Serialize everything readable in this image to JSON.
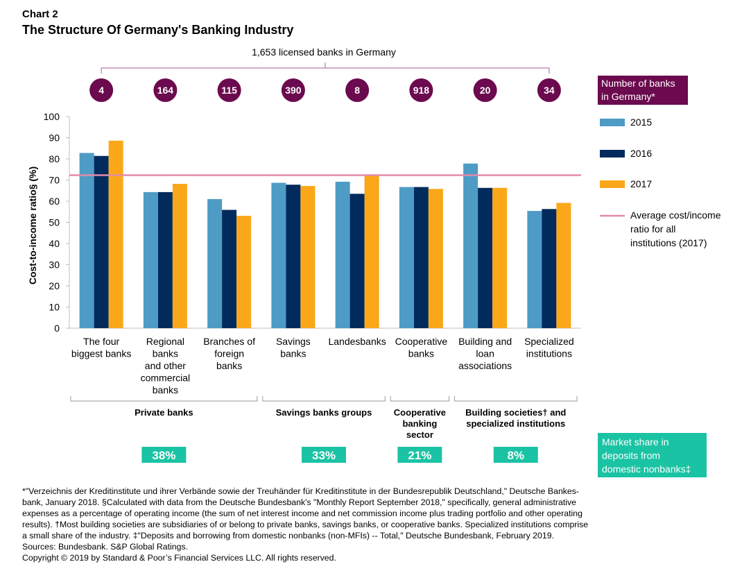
{
  "chart_label": "Chart 2",
  "chart_data": {
    "type": "bar",
    "title": "The Structure Of Germany's Banking Industry",
    "ylabel": "Cost-to-income ratio§ (%)",
    "xlabel": "",
    "ylim": [
      0,
      100
    ],
    "yticks": [
      0,
      10,
      20,
      30,
      40,
      50,
      60,
      70,
      80,
      90,
      100
    ],
    "categories": [
      [
        "The four",
        "biggest banks"
      ],
      [
        "Regional",
        "banks",
        "and other",
        "commercial",
        "banks"
      ],
      [
        "Branches of",
        "foreign",
        "banks"
      ],
      [
        "Savings",
        "banks"
      ],
      [
        "Landesbanks"
      ],
      [
        "Cooperative",
        "banks"
      ],
      [
        "Building and",
        "loan",
        "associations"
      ],
      [
        "Specialized",
        "institutions"
      ]
    ],
    "series": [
      {
        "name": "2015",
        "color": "#4e9bc6",
        "values": [
          82.8,
          64.3,
          61,
          68.7,
          69.2,
          66.7,
          77.8,
          55.4
        ]
      },
      {
        "name": "2016",
        "color": "#002b5c",
        "values": [
          81.4,
          64.3,
          55.9,
          67.8,
          63.5,
          66.7,
          66.3,
          56.3
        ]
      },
      {
        "name": "2017",
        "color": "#fba71a",
        "values": [
          88.6,
          68.2,
          53.1,
          67.2,
          72.3,
          65.8,
          66.3,
          59.2
        ]
      }
    ],
    "reference_line": {
      "name": "Average cost/income ratio for all institutions (2017)",
      "value": 72.3,
      "color": "#e48ba9"
    },
    "legend_position": "right",
    "bank_counts_title": "1,653 licensed banks in Germany",
    "bank_counts": [
      "4",
      "164",
      "115",
      "390",
      "8",
      "918",
      "20",
      "34"
    ],
    "bank_counts_legend": [
      "Number of banks",
      "in Germany*"
    ],
    "groups": [
      {
        "label": [
          "Private banks"
        ],
        "share": "38%"
      },
      {
        "label": [
          "Savings banks groups"
        ],
        "share": "33%"
      },
      {
        "label": [
          "Cooperative",
          "banking",
          "sector"
        ],
        "share": "21%"
      },
      {
        "label": [
          "Building societies† and",
          "specialized institutions"
        ],
        "share": "8%"
      }
    ],
    "share_legend": [
      "Market share in",
      "deposits from",
      "domestic nonbanks‡"
    ],
    "legend_items": [
      {
        "type": "bar",
        "label": [
          "2015"
        ],
        "color": "#4e9bc6"
      },
      {
        "type": "bar",
        "label": [
          "2016"
        ],
        "color": "#002b5c"
      },
      {
        "type": "bar",
        "label": [
          "2017"
        ],
        "color": "#fba71a"
      },
      {
        "type": "line",
        "label": [
          "Average cost/income",
          "ratio for all",
          "institutions (2017)"
        ],
        "color": "#e48ba9"
      }
    ],
    "colors": {
      "purple": "#6b0a4e",
      "teal": "#1ac3a3"
    }
  },
  "footnote_lines": [
    "*\"Verzeichnis der Kreditinstitute und ihrer Verbände sowie der Treuhänder für Kreditinstitute in der Bundesrepublik Deutschland,\" Deutsche Bankes-",
    "bank, January 2018. §Calculated with data from the Deutsche Bundesbank's \"Monthly Report September 2018,\" specifically, general administrative",
    "expenses as a percentage of operating income (the sum of net interest income and net commission income plus trading portfolio and other operating",
    "results). †Most building societies are subsidiaries of or belong to private banks, savings banks, or cooperative banks. Specialized institutions comprise",
    "a small share of the industry. ‡\"Deposits and borrowing from domestic nonbanks (non-MFIs) -- Total,\" Deutsche Bundesbank, February 2019.",
    "Sources: Bundesbank. S&P Global Ratings.",
    "Copyright © 2019 by Standard & Poor’s Financial Services LLC. All rights reserved."
  ]
}
